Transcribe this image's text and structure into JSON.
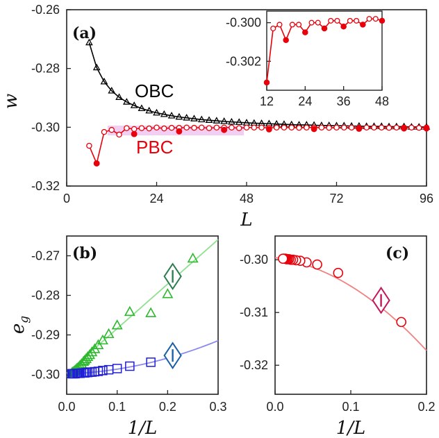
{
  "chart_data": [
    {
      "panel": "(a)",
      "type": "line",
      "xlabel": "L",
      "ylabel": "w",
      "xlim": [
        0,
        96
      ],
      "ylim": [
        -0.32,
        -0.26
      ],
      "x_ticks": [
        0,
        24,
        48,
        72,
        96
      ],
      "y_ticks": [
        -0.32,
        -0.3,
        -0.28,
        -0.26
      ],
      "x_tick_labels": [
        "0",
        "24",
        "48",
        "72",
        "96"
      ],
      "y_tick_labels": [
        "-0.32",
        "-0.30",
        "-0.28",
        "-0.26"
      ],
      "annotations": [
        "OBC",
        "PBC"
      ],
      "colors": {
        "obc": "#000000",
        "pbc": "#e8000b",
        "band": "#f2c9f2"
      },
      "series": [
        {
          "label": "OBC",
          "marker": "triangle-open",
          "x": [
            6,
            8,
            10,
            12,
            14,
            16,
            18,
            20,
            22,
            24,
            26,
            28,
            30,
            32,
            34,
            36,
            38,
            40,
            42,
            44,
            46,
            48,
            50,
            52,
            54,
            56,
            58,
            60,
            62,
            64,
            66,
            68,
            70,
            72,
            74,
            76,
            78,
            80,
            82,
            84,
            86,
            88,
            90,
            92,
            94,
            96
          ],
          "y": [
            -0.2712,
            -0.2797,
            -0.2845,
            -0.2876,
            -0.2898,
            -0.2914,
            -0.2926,
            -0.2936,
            -0.2944,
            -0.2951,
            -0.2956,
            -0.2961,
            -0.2965,
            -0.2968,
            -0.2971,
            -0.2974,
            -0.2976,
            -0.2978,
            -0.298,
            -0.2982,
            -0.2983,
            -0.2985,
            -0.2986,
            -0.2987,
            -0.2988,
            -0.2989,
            -0.299,
            -0.2991,
            -0.2992,
            -0.2992,
            -0.2993,
            -0.2994,
            -0.2994,
            -0.2995,
            -0.2995,
            -0.2996,
            -0.2996,
            -0.2997,
            -0.2997,
            -0.2997,
            -0.2998,
            -0.2998,
            -0.2998,
            -0.2999,
            -0.2999,
            -0.2999
          ]
        },
        {
          "label": "PBC",
          "marker": "circle-open",
          "x": [
            6,
            8,
            10,
            12,
            14,
            16,
            18,
            20,
            22,
            24,
            26,
            28,
            30,
            32,
            34,
            36,
            38,
            40,
            42,
            44,
            46,
            48,
            50,
            52,
            54,
            56,
            58,
            60,
            62,
            64,
            66,
            68,
            70,
            72,
            74,
            76,
            78,
            80,
            82,
            84,
            86,
            88,
            90,
            92,
            94,
            96
          ],
          "y": [
            -0.3063,
            -0.3123,
            -0.3016,
            -0.3009,
            -0.3025,
            -0.3003,
            -0.3006,
            -0.3003,
            -0.3004,
            -0.3001,
            -0.3004,
            -0.3002,
            -0.3002,
            -0.3001,
            -0.3002,
            -0.3001,
            -0.3003,
            -0.3001,
            -0.3001,
            -0.3001,
            -0.3003,
            -0.3001,
            -0.3001,
            -0.3001,
            -0.3002,
            -0.3001,
            -0.3001,
            -0.3001,
            -0.3002,
            -0.3001,
            -0.3001,
            -0.3001,
            -0.3002,
            -0.3001,
            -0.3001,
            -0.3001,
            -0.3002,
            -0.3001,
            -0.3001,
            -0.3001,
            -0.3002,
            -0.3001,
            -0.3001,
            -0.3001,
            -0.3002,
            -0.3001
          ]
        },
        {
          "label": "PBC filled",
          "marker": "circle-filled",
          "x": [
            8,
            18,
            30,
            42,
            54,
            66,
            78,
            90,
            96
          ],
          "y": [
            -0.3123,
            -0.3023,
            -0.3014,
            -0.3009,
            -0.3007,
            -0.3006,
            -0.3005,
            -0.3004,
            -0.3004
          ]
        }
      ]
    },
    {
      "panel": "inset",
      "type": "line",
      "xlim": [
        12,
        48
      ],
      "ylim": [
        -0.3035,
        -0.2994
      ],
      "x_ticks": [
        12,
        24,
        36,
        48
      ],
      "y_ticks": [
        -0.302,
        -0.3
      ],
      "x_tick_labels": [
        "12",
        "24",
        "36",
        "48"
      ],
      "y_tick_labels": [
        "-0.302",
        "-0.300"
      ],
      "series": [
        {
          "label": "PBC",
          "marker": "circle-open",
          "x": [
            12,
            14,
            16,
            18,
            20,
            22,
            24,
            26,
            28,
            30,
            32,
            34,
            36,
            38,
            40,
            42,
            44,
            46,
            48
          ],
          "y": [
            -0.3031,
            -0.3003,
            -0.3001,
            -0.3009,
            -0.3001,
            -0.3001,
            -0.3005,
            -0.3,
            -0.3,
            -0.3003,
            -0.2999,
            -0.2999,
            -0.3002,
            -0.2999,
            -0.2999,
            -0.3001,
            -0.2998,
            -0.2998,
            -0.2999
          ]
        },
        {
          "label": "PBC filled",
          "marker": "circle-filled",
          "x": [
            12,
            18,
            24,
            30,
            36,
            42,
            48
          ],
          "y": [
            -0.3031,
            -0.3009,
            -0.3005,
            -0.3003,
            -0.3002,
            -0.3001,
            -0.2999
          ]
        }
      ]
    },
    {
      "panel": "(b)",
      "type": "scatter",
      "xlabel": "1/L",
      "ylabel": "e_g",
      "xlim": [
        0,
        0.3
      ],
      "ylim": [
        -0.305,
        -0.265
      ],
      "x_ticks": [
        0.0,
        0.1,
        0.2,
        0.3
      ],
      "y_ticks": [
        -0.3,
        -0.29,
        -0.28,
        -0.27
      ],
      "x_tick_labels": [
        "0.0",
        "0.1",
        "0.2",
        "0.3"
      ],
      "y_tick_labels": [
        "-0.30",
        "-0.29",
        "-0.28",
        "-0.27"
      ],
      "colors": {
        "green": "#2db82d",
        "green_fit": "#8fe08f",
        "blue": "#1f1fd6",
        "blue_fit": "#8a8aee",
        "green_diamond": "#2e7d4f",
        "blue_diamond": "#1a5fa8"
      },
      "series": [
        {
          "label": "green",
          "marker": "triangle-open",
          "x": [
            0.25,
            0.2,
            0.1667,
            0.125,
            0.1,
            0.0833,
            0.0714,
            0.0625,
            0.0556,
            0.05,
            0.0455,
            0.0417,
            0.0385,
            0.0357,
            0.0333,
            0.0294,
            0.0263,
            0.0238,
            0.0217,
            0.02,
            0.0167,
            0.0139,
            0.0119,
            0.0104
          ],
          "y": [
            -0.2707,
            -0.2797,
            -0.2845,
            -0.2842,
            -0.2876,
            -0.2898,
            -0.2914,
            -0.2926,
            -0.2936,
            -0.2944,
            -0.2951,
            -0.2956,
            -0.2961,
            -0.2965,
            -0.2968,
            -0.2974,
            -0.2978,
            -0.2982,
            -0.2985,
            -0.2986,
            -0.299,
            -0.2993,
            -0.2995,
            -0.2996
          ]
        },
        {
          "label": "blue",
          "marker": "square-open",
          "x": [
            0.1667,
            0.125,
            0.1,
            0.0833,
            0.0714,
            0.0625,
            0.0556,
            0.05,
            0.0455,
            0.0417,
            0.0385,
            0.0357,
            0.0333,
            0.0294,
            0.0263,
            0.0238,
            0.0217,
            0.02,
            0.0167,
            0.0139,
            0.0119,
            0.0104
          ],
          "y": [
            -0.2969,
            -0.2979,
            -0.2985,
            -0.2988,
            -0.299,
            -0.2992,
            -0.2993,
            -0.2994,
            -0.2994,
            -0.2995,
            -0.2995,
            -0.2996,
            -0.2996,
            -0.2996,
            -0.2997,
            -0.2997,
            -0.2997,
            -0.2997,
            -0.2998,
            -0.2998,
            -0.2998,
            -0.2998
          ]
        },
        {
          "label": "green diamond",
          "marker": "diamond-open",
          "x": [
            0.21
          ],
          "y": [
            -0.2752
          ]
        },
        {
          "label": "blue diamond",
          "marker": "diamond-open",
          "x": [
            0.21
          ],
          "y": [
            -0.2952
          ]
        }
      ]
    },
    {
      "panel": "(c)",
      "type": "scatter",
      "xlabel": "1/L",
      "xlim": [
        0,
        0.2
      ],
      "ylim": [
        -0.3255,
        -0.2955
      ],
      "x_ticks": [
        0.0,
        0.1,
        0.2
      ],
      "y_ticks": [
        -0.32,
        -0.31,
        -0.3
      ],
      "x_tick_labels": [
        "0.0",
        "0.1",
        "0.2"
      ],
      "y_tick_labels": [
        "-0.32",
        "-0.31",
        "-0.30"
      ],
      "colors": {
        "red": "#e8000b",
        "red_fit": "#f28080",
        "diamond": "#c2185b"
      },
      "series": [
        {
          "label": "red",
          "marker": "circle-open",
          "x": [
            0.1667,
            0.0833,
            0.0556,
            0.0417,
            0.0333,
            0.0278,
            0.0238,
            0.0208,
            0.0185,
            0.0167,
            0.0152,
            0.0139,
            0.0128,
            0.0119,
            0.0111,
            0.0104
          ],
          "y": [
            -0.3118,
            -0.3025,
            -0.3009,
            -0.3005,
            -0.3002,
            -0.3001,
            -0.3,
            -0.3,
            -0.2999,
            -0.2999,
            -0.2999,
            -0.2998,
            -0.2998,
            -0.2998,
            -0.2998,
            -0.2998
          ]
        },
        {
          "label": "red diamond",
          "marker": "diamond-open",
          "x": [
            0.14
          ],
          "y": [
            -0.3077
          ]
        }
      ]
    }
  ]
}
